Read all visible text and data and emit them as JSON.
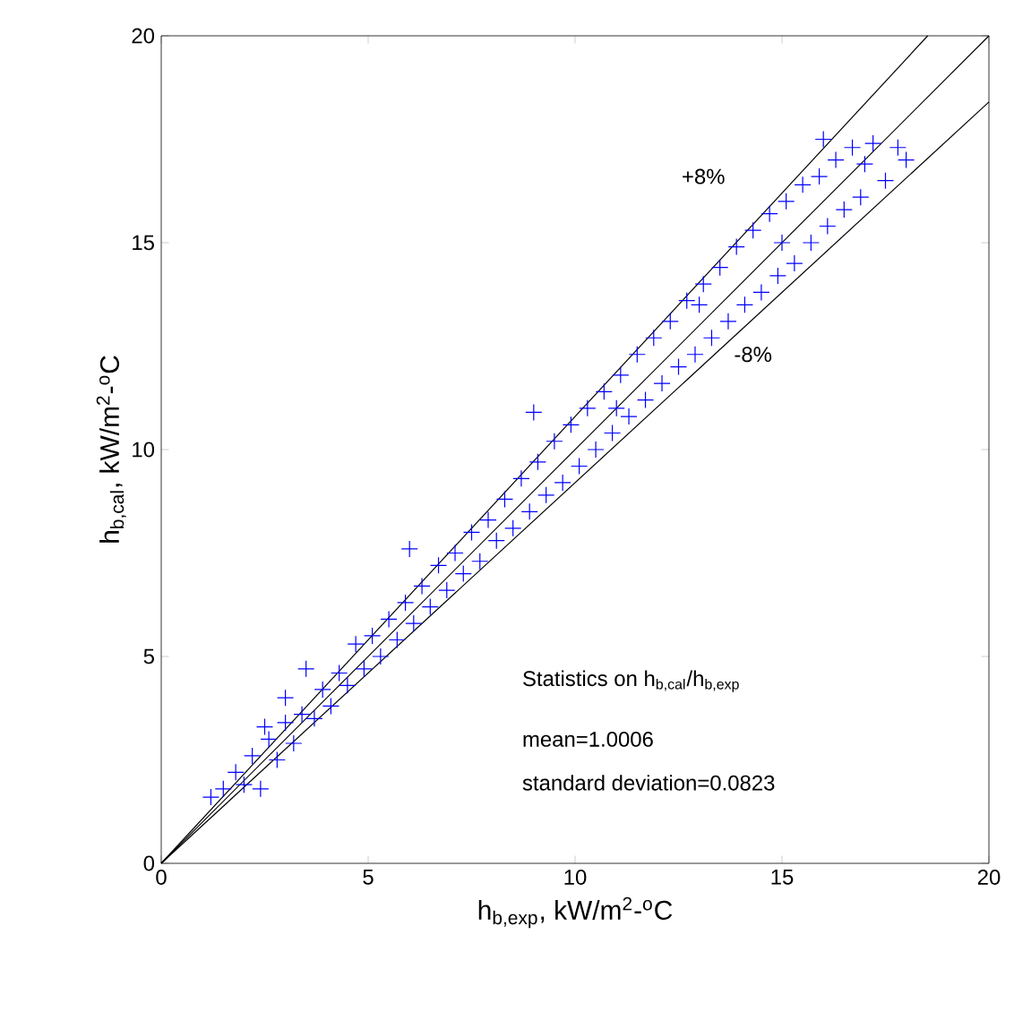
{
  "chart_data": {
    "type": "scatter",
    "xlabel": "h$_{b,exp}$,  kW/m$^{2}$-$^{o}$C",
    "ylabel": "h$_{b,cal}$,  kW/m$^{2}$-$^{o}$C",
    "xlim": [
      0,
      20
    ],
    "ylim": [
      0,
      20
    ],
    "xticks": [
      0,
      5,
      10,
      15,
      20
    ],
    "yticks": [
      0,
      5,
      10,
      15,
      20
    ],
    "grid": false,
    "series": [
      {
        "color": "#0000ff",
        "marker": "cross",
        "x": [
          1.2,
          1.5,
          1.8,
          2.0,
          2.2,
          2.4,
          2.6,
          2.8,
          3.0,
          3.2,
          3.4,
          3.5,
          3.7,
          3.9,
          4.1,
          4.3,
          4.5,
          4.7,
          4.9,
          5.1,
          5.3,
          5.5,
          5.7,
          5.9,
          6.1,
          6.3,
          6.5,
          6.7,
          6.9,
          7.1,
          7.3,
          7.5,
          7.7,
          7.9,
          8.1,
          8.3,
          8.5,
          8.7,
          8.9,
          9.1,
          9.3,
          9.5,
          9.7,
          9.9,
          10.1,
          10.3,
          10.5,
          10.7,
          10.9,
          11.1,
          11.3,
          11.5,
          11.7,
          11.9,
          12.1,
          12.3,
          12.5,
          12.7,
          12.9,
          13.1,
          13.3,
          13.5,
          13.7,
          13.9,
          14.1,
          14.3,
          14.5,
          14.7,
          14.9,
          15.1,
          15.3,
          15.5,
          15.7,
          15.9,
          16.1,
          16.3,
          16.5,
          16.7,
          16.9,
          17.2,
          17.5,
          17.8,
          18.0,
          16.0,
          17.0,
          6.0,
          9.0,
          11.0,
          13.0,
          15.0,
          3.0,
          2.5
        ],
        "values": [
          1.6,
          1.8,
          2.2,
          1.9,
          2.6,
          1.8,
          3.0,
          2.5,
          3.4,
          2.9,
          3.6,
          4.7,
          3.5,
          4.2,
          3.8,
          4.6,
          4.3,
          5.3,
          4.7,
          5.5,
          5.0,
          5.9,
          5.4,
          6.3,
          5.8,
          6.7,
          6.2,
          7.2,
          6.6,
          7.5,
          7.0,
          8.0,
          7.3,
          8.3,
          7.8,
          8.8,
          8.1,
          9.3,
          8.5,
          9.7,
          8.9,
          10.2,
          9.2,
          10.6,
          9.6,
          11.0,
          10.0,
          11.4,
          10.4,
          11.8,
          10.8,
          12.3,
          11.2,
          12.7,
          11.6,
          13.1,
          12.0,
          13.6,
          12.3,
          14.0,
          12.7,
          14.4,
          13.1,
          14.9,
          13.5,
          15.3,
          13.8,
          15.7,
          14.2,
          16.0,
          14.5,
          16.4,
          15.0,
          16.6,
          15.4,
          17.0,
          15.8,
          17.3,
          16.1,
          17.4,
          16.5,
          17.3,
          17.0,
          17.5,
          16.9,
          7.6,
          10.9,
          11.0,
          13.5,
          15.0,
          4.0,
          3.3
        ]
      },
      {
        "type": "line",
        "color": "#000000",
        "x": [
          0,
          20
        ],
        "values": [
          0,
          20
        ]
      },
      {
        "type": "line",
        "color": "#000000",
        "x": [
          0,
          18.52
        ],
        "values": [
          0,
          20
        ]
      },
      {
        "type": "line",
        "color": "#000000",
        "x": [
          0,
          20
        ],
        "values": [
          0,
          18.4
        ]
      }
    ],
    "annotations": [
      "+8%",
      "-8%",
      "Statistics on h$_{b,cal}$/h$_{b,exp}$",
      "mean=1.0006",
      "standard deviation=0.0823"
    ]
  }
}
